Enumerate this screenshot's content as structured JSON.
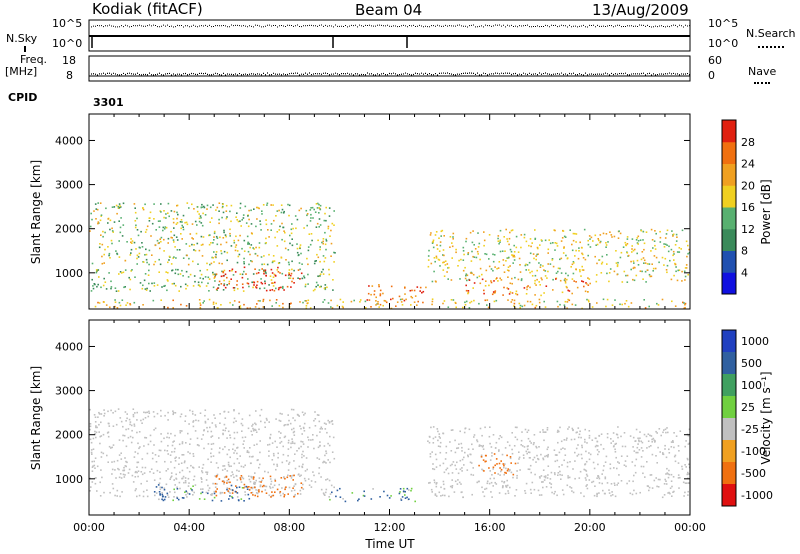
{
  "header": {
    "station": "Kodiak (fitACF)",
    "beam": "Beam 04",
    "date": "13/Aug/2009"
  },
  "panels": {
    "nsky": {
      "label": "N.Sky",
      "ticks": [
        "10^5",
        "10^0"
      ]
    },
    "nsearch": {
      "label": "N.Search",
      "ticks": [
        "10^5",
        "10^0"
      ]
    },
    "freq": {
      "label_line1": "Freq.",
      "label_line2": "[MHz]",
      "ticks": [
        "18",
        "8"
      ]
    },
    "nave": {
      "label": "Nave",
      "ticks": [
        "60",
        "0"
      ]
    },
    "cpid": {
      "label": "CPID",
      "value": "3301"
    }
  },
  "colors": {
    "power_scale": [
      "#1010e0",
      "#2050b0",
      "#3a8a5a",
      "#58b070",
      "#f0d020",
      "#f0a020",
      "#f07010",
      "#e02010"
    ],
    "velocity_scale": [
      "#2040c0",
      "#3060a0",
      "#40a060",
      "#70d040",
      "#c0c0c0",
      "#f0a020",
      "#f07010",
      "#e01010"
    ]
  },
  "chart_data": [
    {
      "type": "heatmap",
      "name": "power",
      "ylabel": "Slant Range [km]",
      "ylim": [
        180,
        4600
      ],
      "yticks": [
        "4000",
        "3000",
        "2000",
        "1000"
      ],
      "xlim": [
        0,
        24
      ],
      "colorbar": {
        "label": "Power [dB]",
        "ticks": [
          "28",
          "24",
          "20",
          "16",
          "12",
          "8",
          "4"
        ],
        "range": [
          0,
          32
        ]
      },
      "echo_regions": [
        {
          "t0": 0.0,
          "t1": 9.8,
          "r0": 1200,
          "r1": 2600,
          "level": 16
        },
        {
          "t0": 0.0,
          "t1": 9.8,
          "r0": 600,
          "r1": 1100,
          "level": 14
        },
        {
          "t0": 5.0,
          "t1": 8.5,
          "r0": 600,
          "r1": 1150,
          "level": 30
        },
        {
          "t0": 11.0,
          "t1": 13.5,
          "r0": 350,
          "r1": 750,
          "level": 26
        },
        {
          "t0": 13.5,
          "t1": 24.0,
          "r0": 800,
          "r1": 2000,
          "level": 18
        },
        {
          "t0": 15.0,
          "t1": 20.0,
          "r0": 500,
          "r1": 900,
          "level": 24
        },
        {
          "t0": 0.0,
          "t1": 24.0,
          "r0": 180,
          "r1": 420,
          "level": 20
        }
      ]
    },
    {
      "type": "heatmap",
      "name": "velocity",
      "ylabel": "Slant Range [km]",
      "ylim": [
        180,
        4600
      ],
      "yticks": [
        "4000",
        "3000",
        "2000",
        "1000"
      ],
      "xlabel": "Time UT",
      "xticks": [
        "00:00",
        "04:00",
        "08:00",
        "12:00",
        "16:00",
        "20:00",
        "00:00"
      ],
      "xlim": [
        0,
        24
      ],
      "colorbar": {
        "label": "Velocity [m s⁻¹]",
        "ticks": [
          "1000",
          "500",
          "100",
          "25",
          "-25",
          "-100",
          "-500",
          "-1000"
        ]
      },
      "echo_regions": [
        {
          "t0": 0.0,
          "t1": 9.8,
          "r0": 600,
          "r1": 2600,
          "v": 0
        },
        {
          "t0": 13.5,
          "t1": 24.0,
          "r0": 600,
          "r1": 2200,
          "v": 0
        },
        {
          "t0": 5.0,
          "t1": 8.5,
          "r0": 600,
          "r1": 1100,
          "v": -300
        },
        {
          "t0": 2.5,
          "t1": 6.5,
          "r0": 500,
          "r1": 900,
          "v": 150
        },
        {
          "t0": 9.5,
          "t1": 13.0,
          "r0": 500,
          "r1": 800,
          "v": 150
        },
        {
          "t0": 15.5,
          "t1": 17.0,
          "r0": 1100,
          "r1": 1600,
          "v": -300
        }
      ]
    }
  ]
}
